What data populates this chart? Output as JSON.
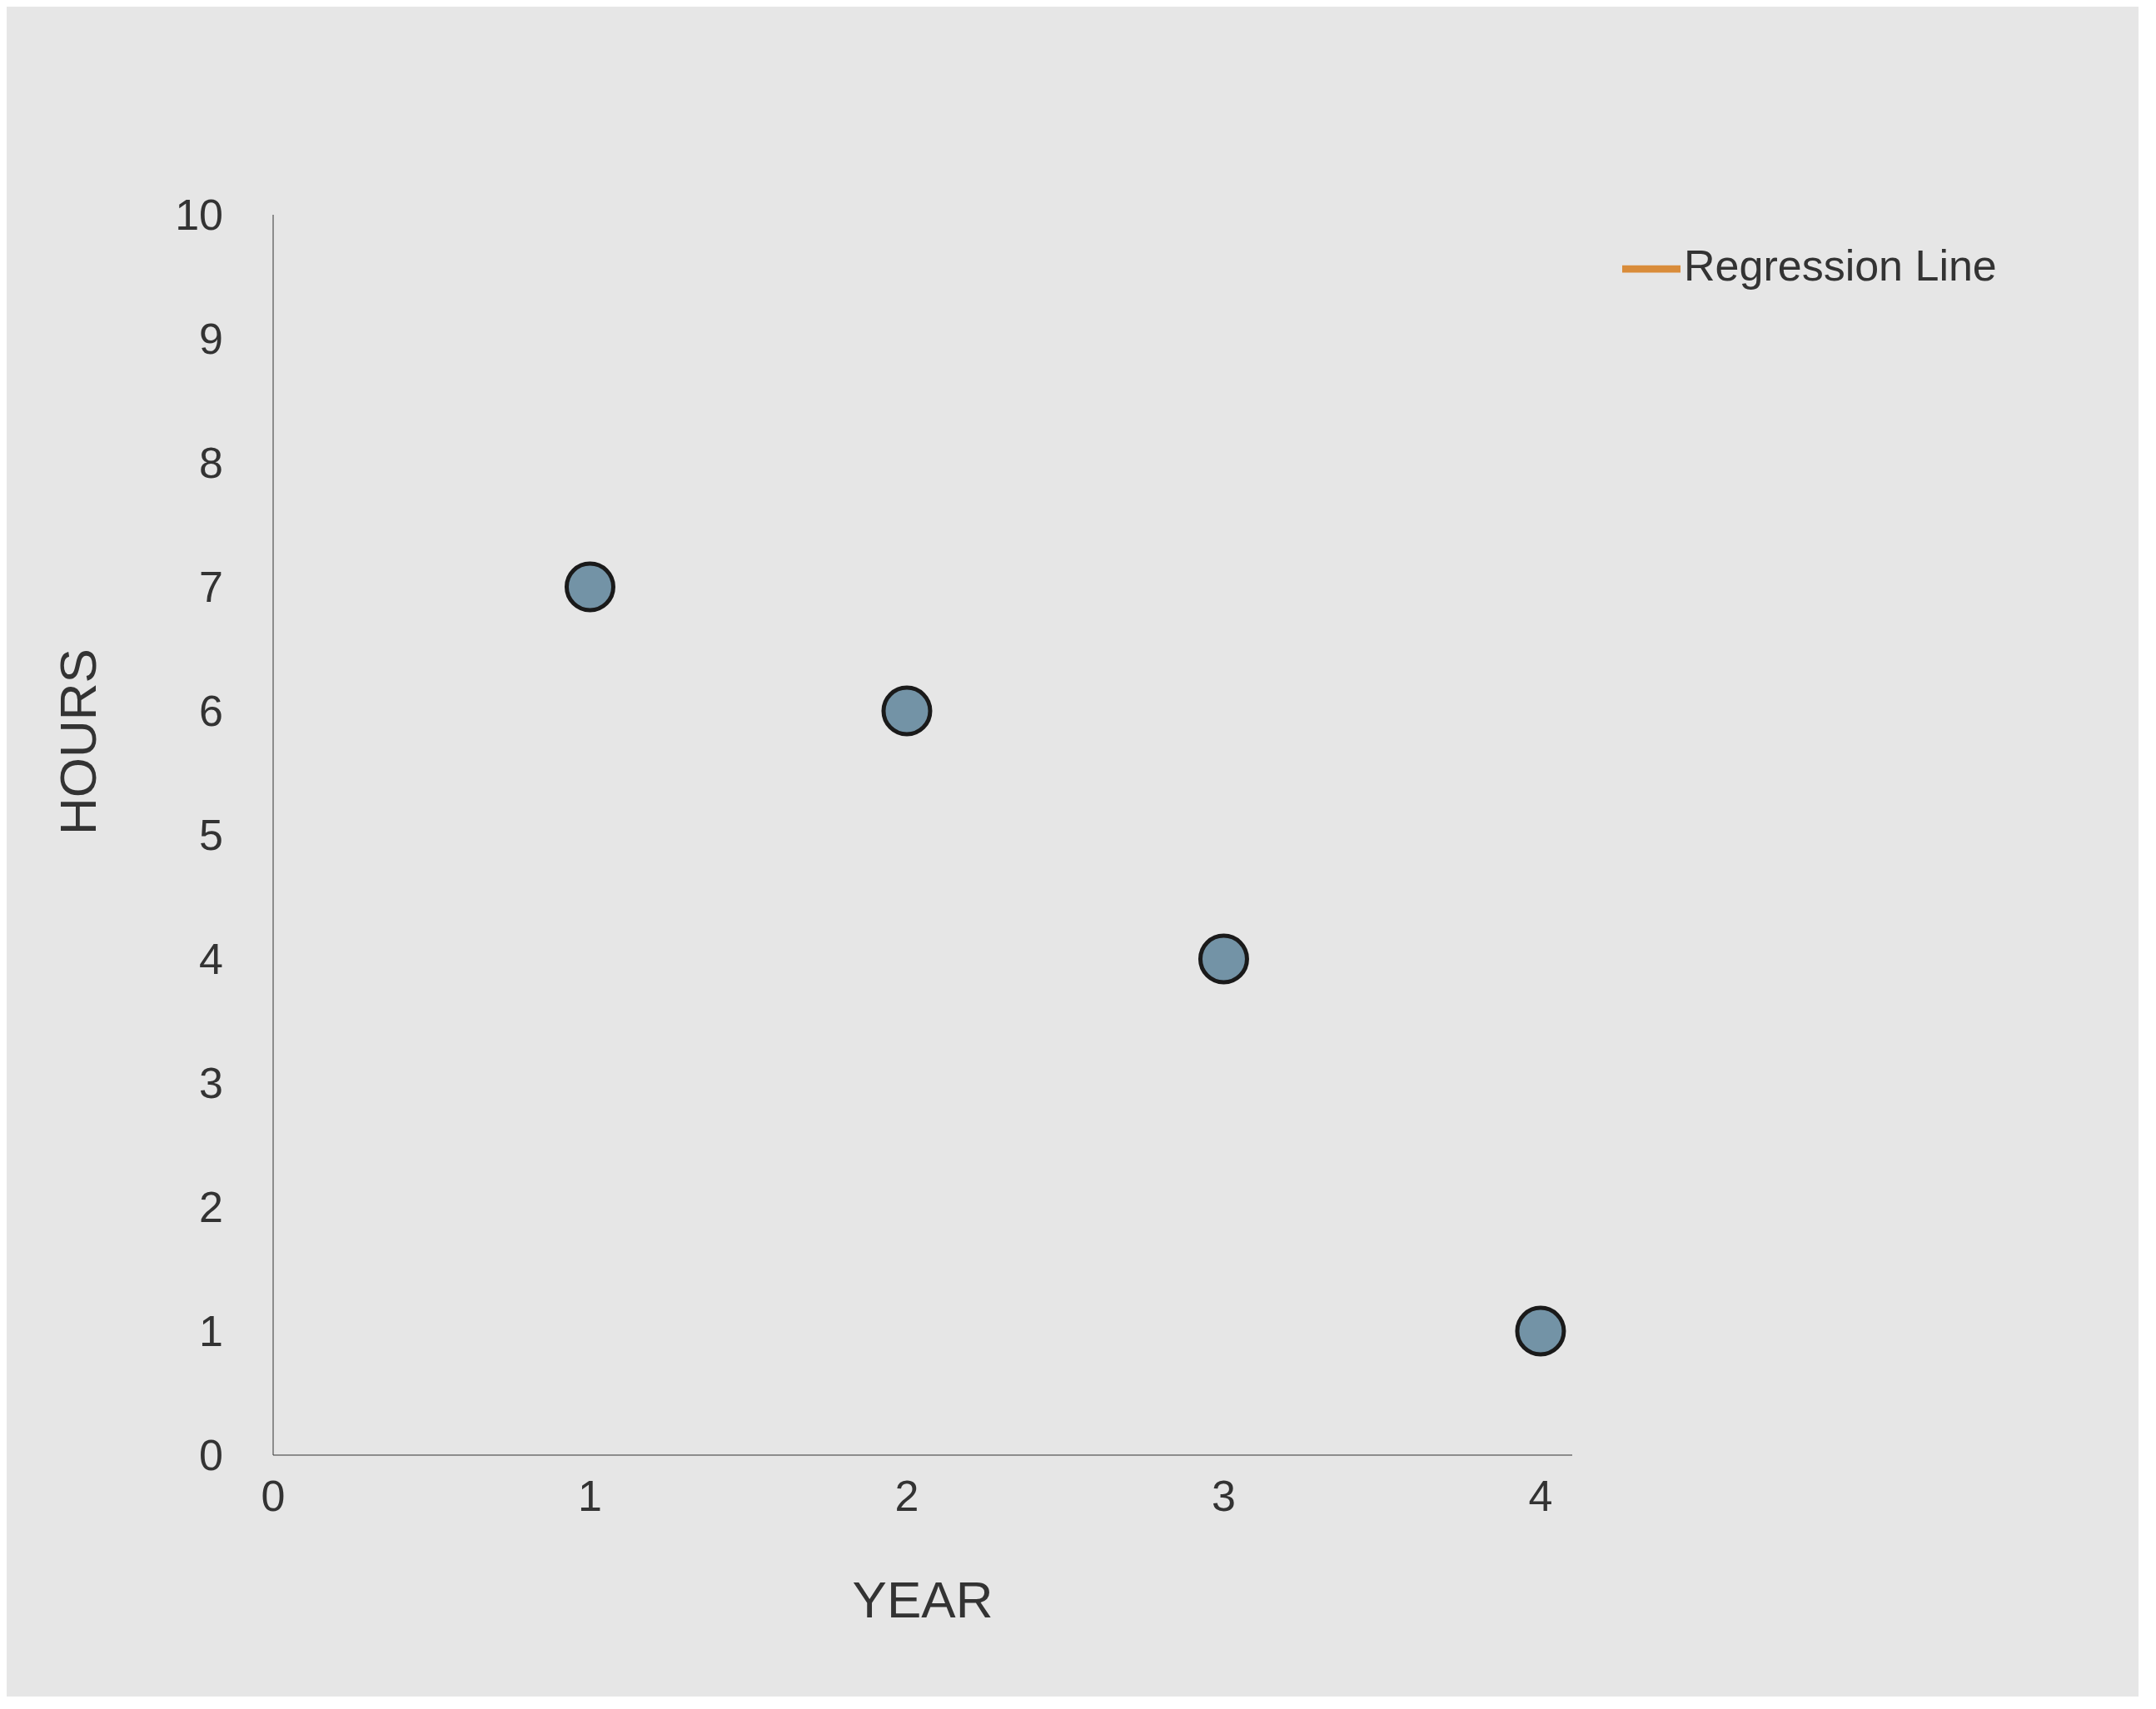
{
  "chart_data": {
    "type": "scatter",
    "xlabel": "YEAR",
    "ylabel": "HOURS",
    "x": [
      1,
      2,
      3,
      4
    ],
    "series": [
      {
        "color": "#7393a6",
        "values": [
          7,
          6,
          4,
          1
        ],
        "marker": "circle"
      },
      {
        "type": "line",
        "name": "Regression Line",
        "color": "#d98c3a",
        "values": [
          null,
          null,
          null,
          null
        ],
        "marker": "square"
      }
    ],
    "xlim": [
      0,
      4.1
    ],
    "xticks": [
      0,
      1,
      2,
      3,
      4
    ],
    "ylim": [
      0,
      10
    ],
    "yticks": [
      0,
      1,
      2,
      3,
      4,
      5,
      6,
      7,
      8,
      9,
      10
    ],
    "legend": "top right",
    "grid": false
  }
}
